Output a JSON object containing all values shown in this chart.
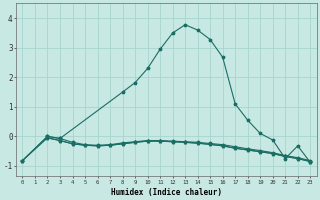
{
  "xlabel": "Humidex (Indice chaleur)",
  "bg_color": "#c8e8e4",
  "grid_color": "#a8d4ce",
  "line_color": "#1a6e64",
  "xlim": [
    -0.5,
    23.5
  ],
  "ylim": [
    -1.35,
    4.5
  ],
  "yticks": [
    -1,
    0,
    1,
    2,
    3,
    4
  ],
  "xticks": [
    0,
    1,
    2,
    3,
    4,
    5,
    6,
    7,
    8,
    9,
    10,
    11,
    12,
    13,
    14,
    15,
    16,
    17,
    18,
    19,
    20,
    21,
    22,
    23
  ],
  "series": [
    {
      "x": [
        0,
        2,
        3,
        8,
        9,
        10,
        11,
        12,
        13,
        14,
        15,
        16,
        17,
        18,
        19,
        20,
        21,
        22,
        23
      ],
      "y": [
        -0.82,
        0.0,
        -0.07,
        1.5,
        1.82,
        2.3,
        2.95,
        3.5,
        3.78,
        3.6,
        3.28,
        2.68,
        1.1,
        0.55,
        0.1,
        -0.12,
        -0.75,
        -0.32,
        -0.88
      ]
    },
    {
      "x": [
        0,
        2,
        3,
        4,
        5,
        6,
        7,
        8,
        9,
        10,
        11,
        12,
        13,
        14,
        15,
        16,
        17,
        18,
        19,
        20,
        21,
        22,
        23
      ],
      "y": [
        -0.82,
        0.0,
        -0.07,
        -0.2,
        -0.28,
        -0.3,
        -0.28,
        -0.22,
        -0.18,
        -0.14,
        -0.14,
        -0.16,
        -0.18,
        -0.2,
        -0.24,
        -0.28,
        -0.35,
        -0.42,
        -0.48,
        -0.55,
        -0.65,
        -0.72,
        -0.82
      ]
    },
    {
      "x": [
        0,
        2,
        3,
        4,
        5,
        6,
        7,
        8,
        9,
        10,
        11,
        12,
        13,
        14,
        15,
        16,
        17,
        18,
        19,
        20,
        21,
        22,
        23
      ],
      "y": [
        -0.82,
        -0.05,
        -0.14,
        -0.25,
        -0.3,
        -0.32,
        -0.3,
        -0.25,
        -0.2,
        -0.16,
        -0.16,
        -0.18,
        -0.2,
        -0.23,
        -0.27,
        -0.32,
        -0.4,
        -0.46,
        -0.52,
        -0.58,
        -0.68,
        -0.75,
        -0.85
      ]
    },
    {
      "x": [
        2,
        3,
        4,
        5,
        6,
        7,
        8,
        9,
        10,
        11,
        12,
        13,
        14,
        15,
        16,
        17,
        18,
        19,
        20,
        21,
        22,
        23
      ],
      "y": [
        -0.05,
        -0.14,
        -0.25,
        -0.3,
        -0.32,
        -0.3,
        -0.25,
        -0.2,
        -0.16,
        -0.16,
        -0.18,
        -0.2,
        -0.23,
        -0.27,
        -0.32,
        -0.4,
        -0.46,
        -0.52,
        -0.58,
        -0.68,
        -0.75,
        -0.85
      ]
    }
  ]
}
